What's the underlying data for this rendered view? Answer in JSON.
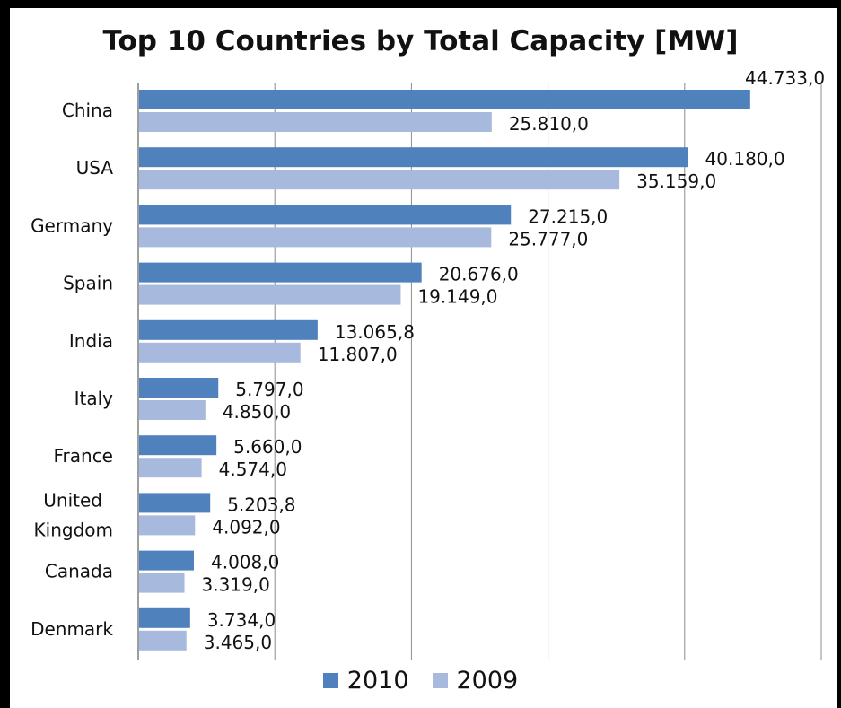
{
  "chart_data": {
    "type": "bar",
    "orientation": "horizontal",
    "title": "Top 10 Countries by Total Capacity [MW]",
    "xlabel": "",
    "ylabel": "",
    "xlim": [
      0,
      50000
    ],
    "grid": true,
    "legend_position": "bottom",
    "categories": [
      "China",
      "USA",
      "Germany",
      "Spain",
      "India",
      "Italy",
      "France",
      "United Kingdom",
      "Canada",
      "Denmark"
    ],
    "category_lines": [
      [
        "China"
      ],
      [
        "USA"
      ],
      [
        "Germany"
      ],
      [
        "Spain"
      ],
      [
        "India"
      ],
      [
        "Italy"
      ],
      [
        "France"
      ],
      [
        "United",
        "Kingdom"
      ],
      [
        "Canada"
      ],
      [
        "Denmark"
      ]
    ],
    "series": [
      {
        "name": "2010",
        "color": "#4f81bd",
        "values": [
          44733.0,
          40180.0,
          27215.0,
          20676.0,
          13065.8,
          5797.0,
          5660.0,
          5203.8,
          4008.0,
          3734.0
        ],
        "labels": [
          "44.733,0",
          "40.180,0",
          "27.215,0",
          "20.676,0",
          "13.065,8",
          "5.797,0",
          "5.660,0",
          "5.203,8",
          "4.008,0",
          "3.734,0"
        ]
      },
      {
        "name": "2009",
        "color": "#a7b9dc",
        "values": [
          25810.0,
          35159.0,
          25777.0,
          19149.0,
          11807.0,
          4850.0,
          4574.0,
          4092.0,
          3319.0,
          3465.0
        ],
        "labels": [
          "25.810,0",
          "35.159,0",
          "25.777,0",
          "19.149,0",
          "11.807,0",
          "4.850,0",
          "4.574,0",
          "4.092,0",
          "3.319,0",
          "3.465,0"
        ]
      }
    ]
  }
}
